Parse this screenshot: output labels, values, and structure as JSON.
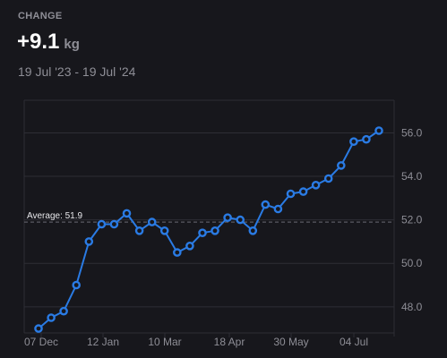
{
  "summary": {
    "label": "CHANGE",
    "value": "+9.1",
    "unit": "kg",
    "date_range": "19 Jul '23 - 19 Jul '24"
  },
  "colors": {
    "background": "#17171c",
    "line": "#2a7be4",
    "grid": "#2e2e35",
    "text_muted": "#8e8e96",
    "text_primary": "#ffffff"
  },
  "chart_data": {
    "type": "line",
    "title": "",
    "xlabel": "",
    "ylabel": "",
    "ylim": [
      46.8,
      57.5
    ],
    "y_ticks": [
      "48.0",
      "50.0",
      "52.0",
      "54.0",
      "56.0"
    ],
    "x_tick_labels": [
      "07 Dec",
      "12 Jan",
      "10 Mar",
      "18 Apr",
      "30 May",
      "04 Jul"
    ],
    "average": {
      "label": "Average: 51.9",
      "value": 51.9
    },
    "grid": true,
    "series": [
      {
        "values": [
          47.0,
          47.5,
          47.8,
          49.0,
          51.0,
          51.8,
          51.8,
          52.3,
          51.5,
          51.9,
          51.5,
          50.5,
          50.8,
          51.4,
          51.5,
          52.1,
          52.0,
          51.5,
          52.7,
          52.5,
          53.2,
          53.3,
          53.6,
          53.9,
          54.5,
          55.6,
          55.7,
          56.1
        ]
      }
    ]
  }
}
